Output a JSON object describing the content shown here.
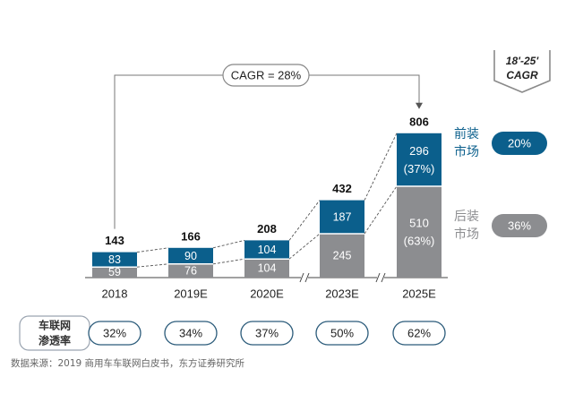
{
  "chart_data": {
    "type": "bar",
    "stacked": true,
    "categories": [
      "2018",
      "2019E",
      "2020E",
      "2023E",
      "2025E"
    ],
    "series": [
      {
        "values": [
          59,
          76,
          104,
          245,
          510
        ],
        "labels": [
          "59",
          "76",
          "104",
          "245",
          "510\n(63%)"
        ],
        "color": "#8c8d90"
      },
      {
        "values": [
          83,
          90,
          104,
          187,
          296
        ],
        "labels": [
          "83",
          "90",
          "104",
          "187",
          "296\n(37%)"
        ],
        "color": "#0b5f8c"
      }
    ],
    "totals": [
      "143",
      "166",
      "208",
      "432",
      "806"
    ],
    "axis_breaks_after": [
      "2020E",
      "2023E"
    ],
    "cagr_label": "CAGR = 28%",
    "legend": {
      "header": "18'-25'\nCAGR",
      "items": [
        {
          "label": "前装\n市场",
          "value": "20%",
          "color": "#0b5f8c"
        },
        {
          "label": "后装\n市场",
          "value": "36%",
          "color": "#8c8d90"
        }
      ]
    },
    "penetration": {
      "label": "车联网\n渗透率",
      "values": [
        "32%",
        "34%",
        "37%",
        "50%",
        "62%"
      ]
    }
  },
  "source": "数据来源：2019 商用车车联网白皮书，东方证券研究所",
  "colors": {
    "front": "#0b5f8c",
    "after": "#8c8d90",
    "text": "#333333"
  }
}
